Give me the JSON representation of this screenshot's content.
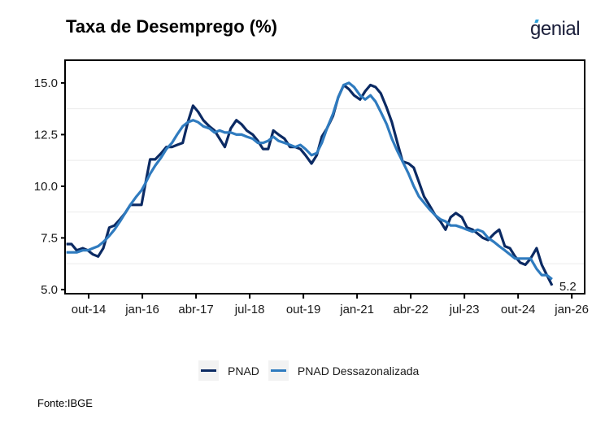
{
  "header": {
    "title": "Taxa de Desemprego (%)",
    "logo_text": "genial"
  },
  "footer": {
    "source": "Fonte:IBGE"
  },
  "chart_data": {
    "type": "line",
    "title": "Taxa de Desemprego (%)",
    "xlabel": "",
    "ylabel": "",
    "ylim": [
      4.8,
      16.1
    ],
    "xlim": [
      2014.2,
      2026.3
    ],
    "grid": true,
    "legend_position": "bottom",
    "y_ticks": [
      {
        "value": 5.0,
        "label": "5.0"
      },
      {
        "value": 7.5,
        "label": "7.5"
      },
      {
        "value": 10.0,
        "label": "10.0"
      },
      {
        "value": 12.5,
        "label": "12.5"
      },
      {
        "value": 15.0,
        "label": "15.0"
      }
    ],
    "x_ticks": [
      {
        "value": 2014.75,
        "label": "out-14"
      },
      {
        "value": 2016.0,
        "label": "jan-16"
      },
      {
        "value": 2017.25,
        "label": "abr-17"
      },
      {
        "value": 2018.5,
        "label": "jul-18"
      },
      {
        "value": 2019.75,
        "label": "out-19"
      },
      {
        "value": 2021.0,
        "label": "jan-21"
      },
      {
        "value": 2022.25,
        "label": "abr-22"
      },
      {
        "value": 2023.5,
        "label": "jul-23"
      },
      {
        "value": 2024.75,
        "label": "out-24"
      },
      {
        "value": 2026.0,
        "label": "jan-26"
      }
    ],
    "end_label": {
      "series": "PNAD",
      "text": "5.2"
    },
    "series": [
      {
        "name": "PNAD",
        "color": "#0b2a63",
        "x": [
          2014.23,
          2014.35,
          2014.47,
          2014.61,
          2014.73,
          2014.85,
          2014.97,
          2015.09,
          2015.23,
          2015.35,
          2015.48,
          2015.6,
          2015.72,
          2015.86,
          2015.98,
          2016.06,
          2016.18,
          2016.3,
          2016.44,
          2016.56,
          2016.69,
          2016.81,
          2016.94,
          2017.06,
          2017.18,
          2017.3,
          2017.42,
          2017.56,
          2017.68,
          2017.8,
          2017.92,
          2018.06,
          2018.19,
          2018.31,
          2018.43,
          2018.57,
          2018.69,
          2018.81,
          2018.93,
          2019.05,
          2019.17,
          2019.31,
          2019.44,
          2019.56,
          2019.68,
          2019.8,
          2019.94,
          2020.06,
          2020.18,
          2020.3,
          2020.44,
          2020.56,
          2020.69,
          2020.81,
          2020.93,
          2021.07,
          2021.19,
          2021.31,
          2021.43,
          2021.55,
          2021.69,
          2021.81,
          2021.94,
          2022.06,
          2022.2,
          2022.32,
          2022.44,
          2022.56,
          2022.68,
          2022.82,
          2022.94,
          2023.06,
          2023.18,
          2023.3,
          2023.44,
          2023.56,
          2023.69,
          2023.81,
          2023.93,
          2024.05,
          2024.19,
          2024.31,
          2024.44,
          2024.56,
          2024.68,
          2024.8,
          2024.92,
          2025.04,
          2025.18,
          2025.3,
          2025.42,
          2025.54
        ],
        "y": [
          7.2,
          7.2,
          6.9,
          7.0,
          6.9,
          6.7,
          6.6,
          7.0,
          8.0,
          8.1,
          8.4,
          8.7,
          9.1,
          9.1,
          9.1,
          10.0,
          11.3,
          11.3,
          11.6,
          11.9,
          11.9,
          12.0,
          12.1,
          13.1,
          13.9,
          13.6,
          13.2,
          12.9,
          12.7,
          12.3,
          11.9,
          12.8,
          13.2,
          13.0,
          12.7,
          12.5,
          12.2,
          11.8,
          11.8,
          12.7,
          12.5,
          12.3,
          11.9,
          11.9,
          11.8,
          11.5,
          11.1,
          11.5,
          12.4,
          12.8,
          13.4,
          14.3,
          14.9,
          14.7,
          14.4,
          14.2,
          14.6,
          14.9,
          14.8,
          14.5,
          13.8,
          13.1,
          12.1,
          11.2,
          11.1,
          10.9,
          10.2,
          9.5,
          9.1,
          8.6,
          8.3,
          7.9,
          8.5,
          8.7,
          8.5,
          8.0,
          7.9,
          7.7,
          7.5,
          7.4,
          7.7,
          7.9,
          7.1,
          7.0,
          6.6,
          6.3,
          6.2,
          6.5,
          7.0,
          6.2,
          5.7,
          5.2
        ]
      },
      {
        "name": "PNAD Dessazonalizada",
        "color": "#2f7bbf",
        "x": [
          2014.23,
          2014.35,
          2014.47,
          2014.61,
          2014.73,
          2014.85,
          2014.97,
          2015.09,
          2015.23,
          2015.35,
          2015.48,
          2015.6,
          2015.72,
          2015.86,
          2015.98,
          2016.06,
          2016.18,
          2016.3,
          2016.44,
          2016.56,
          2016.69,
          2016.81,
          2016.94,
          2017.06,
          2017.18,
          2017.3,
          2017.42,
          2017.56,
          2017.68,
          2017.8,
          2017.92,
          2018.06,
          2018.19,
          2018.31,
          2018.43,
          2018.57,
          2018.69,
          2018.81,
          2018.93,
          2019.05,
          2019.17,
          2019.31,
          2019.44,
          2019.56,
          2019.68,
          2019.8,
          2019.94,
          2020.06,
          2020.18,
          2020.3,
          2020.44,
          2020.56,
          2020.69,
          2020.81,
          2020.93,
          2021.07,
          2021.19,
          2021.31,
          2021.43,
          2021.55,
          2021.69,
          2021.81,
          2021.94,
          2022.06,
          2022.2,
          2022.32,
          2022.44,
          2022.56,
          2022.68,
          2022.82,
          2022.94,
          2023.06,
          2023.18,
          2023.3,
          2023.44,
          2023.56,
          2023.69,
          2023.81,
          2023.93,
          2024.05,
          2024.19,
          2024.31,
          2024.44,
          2024.56,
          2024.68,
          2024.8,
          2024.92,
          2025.04,
          2025.18,
          2025.3,
          2025.42,
          2025.54
        ],
        "y": [
          6.8,
          6.8,
          6.8,
          6.9,
          6.9,
          7.0,
          7.1,
          7.3,
          7.6,
          7.9,
          8.3,
          8.7,
          9.1,
          9.5,
          9.8,
          10.1,
          10.6,
          11.0,
          11.4,
          11.8,
          12.1,
          12.5,
          12.9,
          13.1,
          13.2,
          13.1,
          12.9,
          12.8,
          12.6,
          12.7,
          12.6,
          12.6,
          12.5,
          12.5,
          12.4,
          12.3,
          12.1,
          12.1,
          12.2,
          12.4,
          12.2,
          12.1,
          12.0,
          11.9,
          12.0,
          11.8,
          11.5,
          11.6,
          12.1,
          12.8,
          13.5,
          14.3,
          14.9,
          15.0,
          14.8,
          14.4,
          14.2,
          14.4,
          14.1,
          13.6,
          13.0,
          12.3,
          11.7,
          11.2,
          10.6,
          10.0,
          9.5,
          9.2,
          8.9,
          8.6,
          8.4,
          8.3,
          8.1,
          8.1,
          8.0,
          7.9,
          7.8,
          7.9,
          7.8,
          7.5,
          7.3,
          7.1,
          6.9,
          6.7,
          6.5,
          6.5,
          6.5,
          6.5,
          6.0,
          5.7,
          5.7,
          5.5
        ]
      }
    ]
  }
}
